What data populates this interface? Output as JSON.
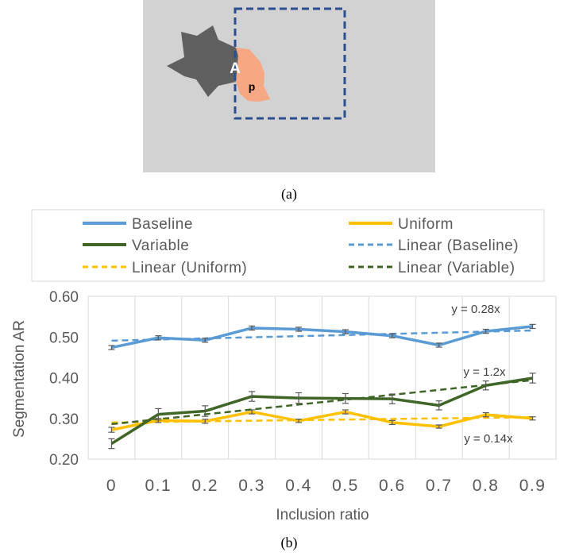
{
  "figure": {
    "panel_a": {
      "caption": "(a)",
      "label_region": "A",
      "label_point": "p",
      "colors": {
        "background": "#d3d2d3",
        "shape": "#5f5f5f",
        "region": "#f6a783",
        "box": "#2b4f8e"
      }
    },
    "panel_b": {
      "caption": "(b)"
    }
  },
  "chart_data": {
    "type": "line",
    "xlabel": "Inclusion ratio",
    "ylabel": "Segmentation AR",
    "categories": [
      "0",
      "0.1",
      "0.2",
      "0.3",
      "0.4",
      "0.5",
      "0.6",
      "0.7",
      "0.8",
      "0.9"
    ],
    "ylim": [
      0.2,
      0.6
    ],
    "yticks": [
      "0.20",
      "0.30",
      "0.40",
      "0.50",
      "0.60"
    ],
    "grid": "vertical",
    "legend_position": "top",
    "series": [
      {
        "name": "Baseline",
        "color": "#5b9bd5",
        "style": "solid",
        "values": [
          0.474,
          0.498,
          0.492,
          0.522,
          0.519,
          0.513,
          0.503,
          0.48,
          0.514,
          0.526
        ],
        "errors": [
          0.005,
          0.005,
          0.005,
          0.005,
          0.005,
          0.005,
          0.005,
          0.005,
          0.005,
          0.005
        ]
      },
      {
        "name": "Uniform",
        "color": "#ffc000",
        "style": "solid",
        "values": [
          0.272,
          0.295,
          0.293,
          0.316,
          0.294,
          0.316,
          0.29,
          0.28,
          0.309,
          0.3
        ],
        "errors": [
          0.006,
          0.005,
          0.005,
          0.005,
          0.004,
          0.005,
          0.005,
          0.004,
          0.005,
          0.004
        ]
      },
      {
        "name": "Variable",
        "color": "#3f6527",
        "style": "solid",
        "values": [
          0.238,
          0.31,
          0.318,
          0.354,
          0.35,
          0.349,
          0.348,
          0.332,
          0.381,
          0.399
        ],
        "errors": [
          0.012,
          0.014,
          0.013,
          0.012,
          0.013,
          0.012,
          0.012,
          0.011,
          0.011,
          0.012
        ]
      }
    ],
    "trendlines": [
      {
        "name": "Linear (Baseline)",
        "of": "Baseline",
        "color": "#5b9bd5",
        "style": "dashed",
        "start": 0.491,
        "end": 0.516,
        "equation": "y = 0.28x"
      },
      {
        "name": "Linear (Uniform)",
        "of": "Uniform",
        "color": "#ffc000",
        "style": "dashed",
        "start": 0.29,
        "end": 0.303,
        "equation": "y = 0.14x"
      },
      {
        "name": "Linear (Variable)",
        "of": "Variable",
        "color": "#3f6527",
        "style": "dashed",
        "start": 0.286,
        "end": 0.394,
        "equation": "y = 1.2x"
      }
    ]
  }
}
